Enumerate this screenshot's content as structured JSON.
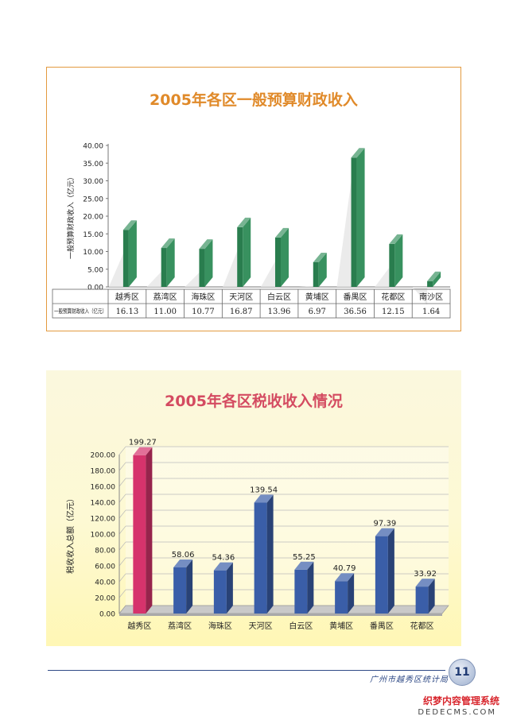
{
  "chart_data": [
    {
      "type": "bar",
      "title": "2005年各区一般预算财政收入",
      "ylabel": "一般预算财政收入（亿元）",
      "table_row_label": "一般预算财政收入（亿元）",
      "categories": [
        "越秀区",
        "荔湾区",
        "海珠区",
        "天河区",
        "白云区",
        "黄埔区",
        "番禺区",
        "花都区",
        "南沙区"
      ],
      "values": [
        16.13,
        11.0,
        10.77,
        16.87,
        13.96,
        6.97,
        36.56,
        12.15,
        1.64
      ],
      "value_labels": [
        "16.13",
        "11.00",
        "10.77",
        "16.87",
        "13.96",
        "6.97",
        "36.56",
        "12.15",
        "1.64"
      ],
      "yticks": [
        "0.00",
        "5.00",
        "10.00",
        "15.00",
        "20.00",
        "25.00",
        "30.00",
        "35.00",
        "40.00"
      ],
      "ylim": [
        0,
        40
      ],
      "color": "#2e8b57"
    },
    {
      "type": "bar",
      "title": "2005年各区税收收入情况",
      "ylabel": "税收收入总额（亿元）",
      "categories": [
        "越秀区",
        "荔湾区",
        "海珠区",
        "天河区",
        "白云区",
        "黄埔区",
        "番禺区",
        "花都区"
      ],
      "values": [
        199.27,
        58.06,
        54.36,
        139.54,
        55.25,
        40.79,
        97.39,
        33.92
      ],
      "value_labels": [
        "199.27",
        "58.06",
        "54.36",
        "139.54",
        "55.25",
        "40.79",
        "97.39",
        "33.92"
      ],
      "yticks": [
        "0.00",
        "20.00",
        "40.00",
        "60.00",
        "80.00",
        "100.00",
        "120.00",
        "140.00",
        "160.00",
        "180.00",
        "200.00"
      ],
      "ylim": [
        0,
        200
      ],
      "highlight_index": 0,
      "color": "#3a5ea8",
      "highlight_color": "#d6336c"
    }
  ],
  "footer": {
    "publisher": "广州市越秀区统计局",
    "page_number": "11"
  },
  "watermark": {
    "line1": "织梦内容管理系统",
    "line2": "DEDECMS.COM"
  }
}
